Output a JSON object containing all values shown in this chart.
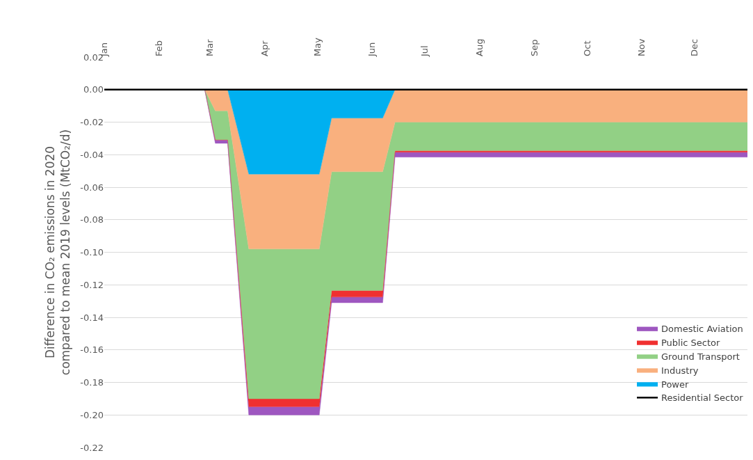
{
  "chart_data": {
    "type": "area",
    "stacked": true,
    "ylabel": "Difference in CO₂ emissions in 2020\ncompared to mean 2019 levels (MtCO₂/d)",
    "x": [
      "2020-01-01",
      "2020-02-27",
      "2020-03-04",
      "2020-03-11",
      "2020-03-23",
      "2020-05-02",
      "2020-05-09",
      "2020-06-07",
      "2020-06-14",
      "2020-12-31"
    ],
    "series": [
      {
        "name": "Residential Sector",
        "type": "line",
        "color": "#000000",
        "values": [
          0,
          0,
          0,
          0,
          0,
          0,
          0,
          0,
          0,
          0
        ]
      },
      {
        "name": "Power",
        "color": "#00b0f0",
        "values": [
          0,
          0,
          0,
          0,
          -0.052,
          -0.052,
          -0.0175,
          -0.0175,
          0,
          0
        ]
      },
      {
        "name": "Industry",
        "color": "#f9b07e",
        "values": [
          0,
          0,
          -0.013,
          -0.013,
          -0.046,
          -0.046,
          -0.033,
          -0.033,
          -0.02,
          -0.02
        ]
      },
      {
        "name": "Ground Transport",
        "color": "#92d085",
        "values": [
          0,
          0,
          -0.018,
          -0.018,
          -0.092,
          -0.092,
          -0.073,
          -0.073,
          -0.0175,
          -0.0175
        ]
      },
      {
        "name": "Public Sector",
        "color": "#f03030",
        "values": [
          0,
          0,
          0,
          0,
          -0.005,
          -0.005,
          -0.004,
          -0.004,
          -0.001,
          -0.001
        ]
      },
      {
        "name": "Domestic Aviation",
        "color": "#9e57c0",
        "values": [
          0,
          0,
          -0.002,
          -0.002,
          -0.005,
          -0.005,
          -0.0035,
          -0.0035,
          -0.003,
          -0.003
        ]
      }
    ],
    "xlim": [
      "2020-01-01",
      "2020-12-31"
    ],
    "xticks": [
      {
        "value": "2020-01-01",
        "label": "Jan"
      },
      {
        "value": "2020-02-01",
        "label": "Feb"
      },
      {
        "value": "2020-03-01",
        "label": "Mar"
      },
      {
        "value": "2020-04-01",
        "label": "Apr"
      },
      {
        "value": "2020-05-01",
        "label": "May"
      },
      {
        "value": "2020-06-01",
        "label": "Jun"
      },
      {
        "value": "2020-07-01",
        "label": "Jul"
      },
      {
        "value": "2020-08-01",
        "label": "Aug"
      },
      {
        "value": "2020-09-01",
        "label": "Sep"
      },
      {
        "value": "2020-10-01",
        "label": "Oct"
      },
      {
        "value": "2020-11-01",
        "label": "Nov"
      },
      {
        "value": "2020-12-01",
        "label": "Dec"
      }
    ],
    "ylim": [
      -0.22,
      0.02
    ],
    "yticks": [
      {
        "value": 0.02,
        "label": "0.02"
      },
      {
        "value": 0,
        "label": "0.00"
      },
      {
        "value": -0.02,
        "label": "-0.02"
      },
      {
        "value": -0.04,
        "label": "-0.04"
      },
      {
        "value": -0.06,
        "label": "-0.06"
      },
      {
        "value": -0.08,
        "label": "-0.08"
      },
      {
        "value": -0.1,
        "label": "-0.10"
      },
      {
        "value": -0.12,
        "label": "-0.12"
      },
      {
        "value": -0.14,
        "label": "-0.14"
      },
      {
        "value": -0.16,
        "label": "-0.16"
      },
      {
        "value": -0.18,
        "label": "-0.18"
      },
      {
        "value": -0.2,
        "label": "-0.20"
      },
      {
        "value": -0.22,
        "label": "-0.22"
      }
    ],
    "grid": "y",
    "legend": "bottom right",
    "tick_labels": "xy"
  }
}
